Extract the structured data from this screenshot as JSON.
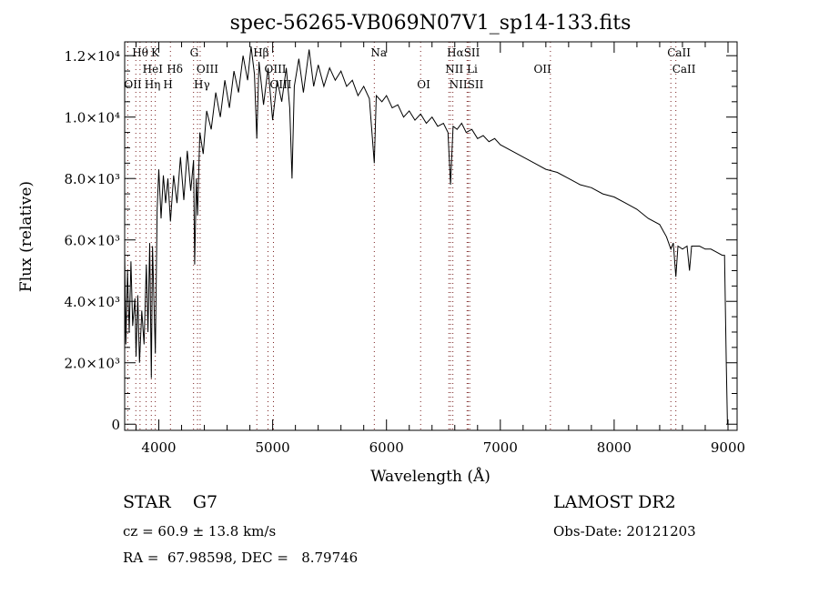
{
  "chart_data": {
    "type": "line",
    "title": "spec-56265-VB069N07V1_sp14-133.fits",
    "xlabel": "Wavelength (Å)",
    "ylabel": "Flux (relative)",
    "xlim": [
      3700,
      9080
    ],
    "ylim": [
      -200,
      12450
    ],
    "x_ticks": [
      4000,
      5000,
      6000,
      7000,
      8000,
      9000
    ],
    "x_tick_labels": [
      "4000",
      "5000",
      "6000",
      "7000",
      "8000",
      "9000"
    ],
    "y_ticks": [
      0,
      2000,
      4000,
      6000,
      8000,
      10000,
      12000
    ],
    "y_tick_labels": [
      "0",
      "2.0×10³",
      "4.0×10³",
      "6.0×10³",
      "8.0×10³",
      "1.0×10⁴",
      "1.2×10⁴"
    ],
    "grid": false,
    "series": [
      {
        "name": "spectrum",
        "points": [
          [
            3700,
            5600
          ],
          [
            3710,
            2600
          ],
          [
            3725,
            5000
          ],
          [
            3740,
            3000
          ],
          [
            3755,
            5300
          ],
          [
            3770,
            3200
          ],
          [
            3790,
            4100
          ],
          [
            3800,
            2200
          ],
          [
            3815,
            4200
          ],
          [
            3830,
            2000
          ],
          [
            3850,
            3700
          ],
          [
            3870,
            2600
          ],
          [
            3890,
            5200
          ],
          [
            3905,
            3000
          ],
          [
            3920,
            5900
          ],
          [
            3934,
            1500
          ],
          [
            3945,
            5800
          ],
          [
            3969,
            2300
          ],
          [
            3985,
            7000
          ],
          [
            4000,
            8300
          ],
          [
            4020,
            6700
          ],
          [
            4040,
            8100
          ],
          [
            4060,
            7200
          ],
          [
            4080,
            8000
          ],
          [
            4102,
            6600
          ],
          [
            4130,
            8100
          ],
          [
            4160,
            7200
          ],
          [
            4190,
            8700
          ],
          [
            4220,
            7300
          ],
          [
            4250,
            8900
          ],
          [
            4280,
            7600
          ],
          [
            4305,
            8600
          ],
          [
            4315,
            5200
          ],
          [
            4330,
            8000
          ],
          [
            4340,
            6800
          ],
          [
            4360,
            9500
          ],
          [
            4390,
            8800
          ],
          [
            4420,
            10200
          ],
          [
            4460,
            9600
          ],
          [
            4500,
            10800
          ],
          [
            4540,
            10000
          ],
          [
            4580,
            11200
          ],
          [
            4620,
            10300
          ],
          [
            4660,
            11500
          ],
          [
            4700,
            10800
          ],
          [
            4740,
            12000
          ],
          [
            4780,
            11200
          ],
          [
            4810,
            12300
          ],
          [
            4840,
            11400
          ],
          [
            4861,
            9300
          ],
          [
            4880,
            11800
          ],
          [
            4920,
            10400
          ],
          [
            4960,
            11600
          ],
          [
            5000,
            9900
          ],
          [
            5040,
            11200
          ],
          [
            5080,
            10500
          ],
          [
            5120,
            11600
          ],
          [
            5150,
            10300
          ],
          [
            5170,
            8000
          ],
          [
            5190,
            11000
          ],
          [
            5230,
            11900
          ],
          [
            5270,
            10800
          ],
          [
            5320,
            12200
          ],
          [
            5360,
            11000
          ],
          [
            5400,
            11700
          ],
          [
            5450,
            11000
          ],
          [
            5500,
            11600
          ],
          [
            5550,
            11200
          ],
          [
            5600,
            11500
          ],
          [
            5650,
            11000
          ],
          [
            5700,
            11200
          ],
          [
            5750,
            10700
          ],
          [
            5800,
            11000
          ],
          [
            5850,
            10600
          ],
          [
            5893,
            8500
          ],
          [
            5910,
            10700
          ],
          [
            5960,
            10500
          ],
          [
            6000,
            10700
          ],
          [
            6050,
            10300
          ],
          [
            6100,
            10400
          ],
          [
            6150,
            10000
          ],
          [
            6200,
            10200
          ],
          [
            6250,
            9900
          ],
          [
            6300,
            10100
          ],
          [
            6350,
            9800
          ],
          [
            6400,
            10000
          ],
          [
            6450,
            9700
          ],
          [
            6500,
            9800
          ],
          [
            6540,
            9500
          ],
          [
            6563,
            7800
          ],
          [
            6585,
            9700
          ],
          [
            6620,
            9600
          ],
          [
            6660,
            9800
          ],
          [
            6700,
            9500
          ],
          [
            6750,
            9600
          ],
          [
            6800,
            9300
          ],
          [
            6850,
            9400
          ],
          [
            6900,
            9200
          ],
          [
            6950,
            9300
          ],
          [
            7000,
            9100
          ],
          [
            7100,
            8900
          ],
          [
            7200,
            8700
          ],
          [
            7300,
            8500
          ],
          [
            7400,
            8300
          ],
          [
            7500,
            8200
          ],
          [
            7600,
            8000
          ],
          [
            7700,
            7800
          ],
          [
            7800,
            7700
          ],
          [
            7900,
            7500
          ],
          [
            8000,
            7400
          ],
          [
            8100,
            7200
          ],
          [
            8200,
            7000
          ],
          [
            8300,
            6700
          ],
          [
            8400,
            6500
          ],
          [
            8460,
            6100
          ],
          [
            8498,
            5700
          ],
          [
            8520,
            5900
          ],
          [
            8542,
            4800
          ],
          [
            8560,
            5800
          ],
          [
            8600,
            5700
          ],
          [
            8640,
            5800
          ],
          [
            8662,
            5000
          ],
          [
            8680,
            5800
          ],
          [
            8750,
            5800
          ],
          [
            8800,
            5700
          ],
          [
            8850,
            5700
          ],
          [
            8900,
            5600
          ],
          [
            8950,
            5500
          ],
          [
            8970,
            5500
          ],
          [
            8985,
            2000
          ],
          [
            8995,
            0
          ]
        ]
      }
    ],
    "line_markers": [
      {
        "label": "Hθ",
        "wavelength": 3798,
        "row": 1
      },
      {
        "label": "K",
        "wavelength": 3934,
        "row": 1
      },
      {
        "label": "G",
        "wavelength": 4305,
        "row": 1
      },
      {
        "label": "Hβ",
        "wavelength": 4861,
        "row": 1
      },
      {
        "label": "Na",
        "wavelength": 5893,
        "row": 1
      },
      {
        "label": "HαSII",
        "wavelength": 6563,
        "row": 1
      },
      {
        "label": "CaII",
        "wavelength": 8498,
        "row": 1
      },
      {
        "label": "HeI",
        "wavelength": 3889,
        "row": 2
      },
      {
        "label": "Hδ",
        "wavelength": 4102,
        "row": 2
      },
      {
        "label": "OIII",
        "wavelength": 4363,
        "row": 2
      },
      {
        "label": "OIII",
        "wavelength": 4959,
        "row": 2
      },
      {
        "label": "NII Li",
        "wavelength": 6548,
        "row": 2
      },
      {
        "label": "OII",
        "wavelength": 7325,
        "row": 2
      },
      {
        "label": "CaII",
        "wavelength": 8542,
        "row": 2
      },
      {
        "label": "OII",
        "wavelength": 3727,
        "row": 3
      },
      {
        "label": "Hη",
        "wavelength": 3835,
        "row": 3
      },
      {
        "label": "H",
        "wavelength": 3969,
        "row": 3
      },
      {
        "label": "Hγ",
        "wavelength": 4340,
        "row": 3
      },
      {
        "label": "OIII",
        "wavelength": 5007,
        "row": 3
      },
      {
        "label": "OI",
        "wavelength": 6300,
        "row": 3
      },
      {
        "label": "NIISII",
        "wavelength": 6583,
        "row": 3
      }
    ],
    "marker_dotted_wavelengths": [
      3727,
      3798,
      3835,
      3889,
      3934,
      3969,
      4102,
      4305,
      4340,
      4363,
      4861,
      4959,
      5007,
      5893,
      6300,
      6548,
      6563,
      6583,
      6708,
      6717,
      6731,
      7440,
      8498,
      8542
    ]
  },
  "info": {
    "object_class": "STAR    G7",
    "cz": "cz = 60.9 ± 13.8 km/s",
    "coords": "RA =  67.98598, DEC =   8.79746",
    "survey": "LAMOST DR2",
    "obs_date": "Obs-Date: 20121203"
  }
}
